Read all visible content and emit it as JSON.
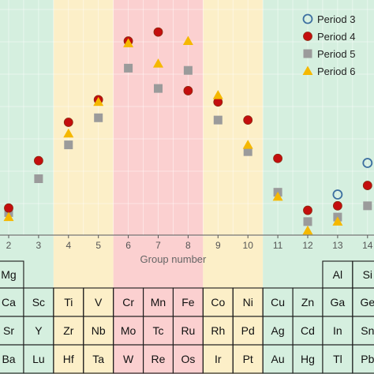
{
  "chart_data": {
    "type": "scatter",
    "xlabel": "Group number",
    "x_ticks": [
      2,
      3,
      4,
      5,
      6,
      7,
      8,
      9,
      10,
      11,
      12,
      13,
      14
    ],
    "x_range": [
      1.7,
      14.2
    ],
    "y_range": [
      0,
      1
    ],
    "grid": true,
    "legend_position": "top-right",
    "background_bands": [
      {
        "from": 1.5,
        "to": 3.5,
        "color": "#d5efdf"
      },
      {
        "from": 3.5,
        "to": 5.5,
        "color": "#fcefc8"
      },
      {
        "from": 5.5,
        "to": 8.5,
        "color": "#fbd0d0"
      },
      {
        "from": 8.5,
        "to": 10.5,
        "color": "#fcefc8"
      },
      {
        "from": 10.5,
        "to": 14.5,
        "color": "#d5efdf"
      }
    ],
    "series": [
      {
        "name": "Period 3",
        "marker": "open-circle",
        "color": "#3c6fa0",
        "points": [
          [
            13,
            0.18
          ],
          [
            14,
            0.32
          ]
        ]
      },
      {
        "name": "Period 4",
        "marker": "circle",
        "color": "#c40e0e",
        "points": [
          [
            2,
            0.12
          ],
          [
            3,
            0.33
          ],
          [
            4,
            0.5
          ],
          [
            5,
            0.6
          ],
          [
            6,
            0.86
          ],
          [
            7,
            0.9
          ],
          [
            8,
            0.64
          ],
          [
            9,
            0.59
          ],
          [
            10,
            0.51
          ],
          [
            11,
            0.34
          ],
          [
            12,
            0.11
          ],
          [
            13,
            0.13
          ],
          [
            14,
            0.22
          ]
        ]
      },
      {
        "name": "Period 5",
        "marker": "square",
        "color": "#9b9b9b",
        "points": [
          [
            2,
            0.1
          ],
          [
            3,
            0.25
          ],
          [
            4,
            0.4
          ],
          [
            5,
            0.52
          ],
          [
            6,
            0.74
          ],
          [
            7,
            0.65
          ],
          [
            8,
            0.73
          ],
          [
            9,
            0.51
          ],
          [
            10,
            0.37
          ],
          [
            11,
            0.19
          ],
          [
            12,
            0.06
          ],
          [
            13,
            0.08
          ],
          [
            14,
            0.13
          ]
        ]
      },
      {
        "name": "Period 6",
        "marker": "triangle",
        "color": "#f5b800",
        "points": [
          [
            2,
            0.08
          ],
          [
            4,
            0.45
          ],
          [
            5,
            0.59
          ],
          [
            6,
            0.85
          ],
          [
            7,
            0.76
          ],
          [
            8,
            0.86
          ],
          [
            9,
            0.62
          ],
          [
            10,
            0.4
          ],
          [
            11,
            0.17
          ],
          [
            12,
            0.02
          ],
          [
            13,
            0.06
          ]
        ]
      }
    ]
  },
  "periodic_table": {
    "columns": [
      "2",
      "3",
      "4",
      "5",
      "6",
      "7",
      "8",
      "9",
      "10",
      "11",
      "12",
      "13",
      "14"
    ],
    "rows": [
      [
        "Mg",
        "",
        "",
        "",
        "",
        "",
        "",
        "",
        "",
        "",
        "",
        "Al",
        "Si"
      ],
      [
        "Ca",
        "Sc",
        "Ti",
        "V",
        "Cr",
        "Mn",
        "Fe",
        "Co",
        "Ni",
        "Cu",
        "Zn",
        "Ga",
        "Ge"
      ],
      [
        "Sr",
        "Y",
        "Zr",
        "Nb",
        "Mo",
        "Tc",
        "Ru",
        "Rh",
        "Pd",
        "Ag",
        "Cd",
        "In",
        "Sn"
      ],
      [
        "Ba",
        "Lu",
        "Hf",
        "Ta",
        "W",
        "Re",
        "Os",
        "Ir",
        "Pt",
        "Au",
        "Hg",
        "Tl",
        "Pb"
      ]
    ]
  }
}
